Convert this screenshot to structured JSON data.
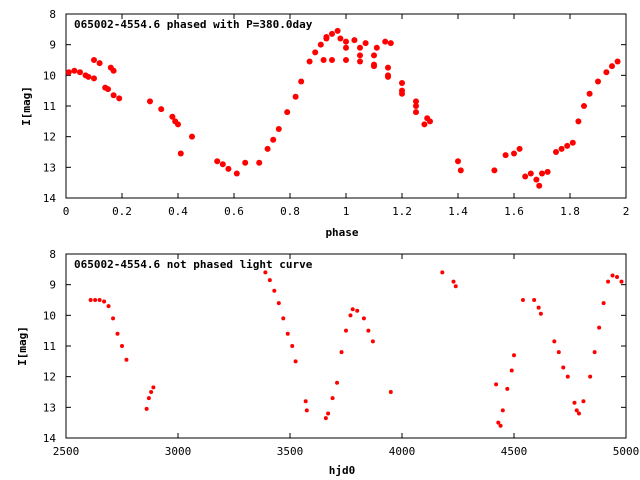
{
  "colors": {
    "series": "#ff0000",
    "axes": "#000000",
    "background": "#ffffff"
  },
  "chart_data": [
    {
      "type": "scatter",
      "title": "065002-4554.6 phased with P=380.0day",
      "xlabel": "phase",
      "ylabel": "I[mag]",
      "xlim": [
        0,
        2
      ],
      "ylim": [
        14,
        8
      ],
      "y_reversed": true,
      "grid": false,
      "x_ticks": [
        "0",
        "0.2",
        "0.4",
        "0.6",
        "0.8",
        "1",
        "1.2",
        "1.4",
        "1.6",
        "1.8",
        "2"
      ],
      "y_ticks": [
        "8",
        "9",
        "10",
        "11",
        "12",
        "13",
        "14"
      ],
      "series": [
        {
          "marker": "filled-circle",
          "points": [
            [
              0.01,
              9.9
            ],
            [
              0.03,
              9.85
            ],
            [
              0.05,
              9.9
            ],
            [
              0.07,
              10.0
            ],
            [
              0.08,
              10.05
            ],
            [
              0.1,
              10.1
            ],
            [
              0.1,
              9.5
            ],
            [
              0.12,
              9.6
            ],
            [
              0.14,
              10.4
            ],
            [
              0.15,
              10.45
            ],
            [
              0.16,
              9.75
            ],
            [
              0.17,
              9.85
            ],
            [
              0.17,
              10.65
            ],
            [
              0.19,
              10.75
            ],
            [
              0.3,
              10.85
            ],
            [
              0.34,
              11.1
            ],
            [
              0.38,
              11.35
            ],
            [
              0.39,
              11.5
            ],
            [
              0.4,
              11.6
            ],
            [
              0.41,
              12.55
            ],
            [
              0.45,
              12.0
            ],
            [
              0.54,
              12.8
            ],
            [
              0.56,
              12.9
            ],
            [
              0.58,
              13.05
            ],
            [
              0.61,
              13.2
            ],
            [
              0.64,
              12.85
            ],
            [
              0.69,
              12.85
            ],
            [
              0.72,
              12.4
            ],
            [
              0.74,
              12.1
            ],
            [
              0.76,
              11.75
            ],
            [
              0.79,
              11.2
            ],
            [
              0.82,
              10.7
            ],
            [
              0.84,
              10.2
            ],
            [
              0.87,
              9.55
            ],
            [
              0.89,
              9.25
            ],
            [
              0.91,
              9.0
            ],
            [
              0.93,
              8.8
            ],
            [
              0.95,
              8.65
            ],
            [
              0.97,
              8.55
            ],
            [
              0.92,
              9.5
            ],
            [
              0.95,
              9.5
            ],
            [
              1.0,
              9.5
            ],
            [
              1.05,
              9.55
            ],
            [
              1.1,
              9.7
            ],
            [
              1.15,
              10.0
            ],
            [
              1.2,
              10.5
            ],
            [
              1.25,
              11.0
            ],
            [
              1.3,
              11.5
            ],
            [
              0.93,
              8.75
            ],
            [
              0.98,
              8.8
            ],
            [
              1.03,
              8.85
            ],
            [
              1.07,
              8.95
            ],
            [
              1.11,
              9.1
            ],
            [
              1.0,
              8.9
            ],
            [
              1.05,
              9.1
            ],
            [
              1.1,
              9.35
            ],
            [
              1.15,
              9.75
            ],
            [
              1.2,
              10.25
            ],
            [
              1.25,
              10.85
            ],
            [
              1.29,
              11.4
            ],
            [
              1.0,
              9.1
            ],
            [
              1.05,
              9.35
            ],
            [
              1.1,
              9.65
            ],
            [
              1.15,
              10.05
            ],
            [
              1.2,
              10.6
            ],
            [
              1.25,
              11.2
            ],
            [
              1.28,
              11.6
            ],
            [
              1.14,
              8.9
            ],
            [
              1.16,
              8.95
            ],
            [
              1.4,
              12.8
            ],
            [
              1.41,
              13.1
            ],
            [
              1.53,
              13.1
            ],
            [
              1.57,
              12.6
            ],
            [
              1.6,
              12.55
            ],
            [
              1.62,
              12.4
            ],
            [
              1.64,
              13.3
            ],
            [
              1.66,
              13.2
            ],
            [
              1.68,
              13.4
            ],
            [
              1.69,
              13.6
            ],
            [
              1.7,
              13.2
            ],
            [
              1.72,
              13.15
            ],
            [
              1.75,
              12.5
            ],
            [
              1.77,
              12.4
            ],
            [
              1.79,
              12.3
            ],
            [
              1.81,
              12.2
            ],
            [
              1.83,
              11.5
            ],
            [
              1.85,
              11.0
            ],
            [
              1.87,
              10.6
            ],
            [
              1.9,
              10.2
            ],
            [
              1.93,
              9.9
            ],
            [
              1.95,
              9.7
            ],
            [
              1.97,
              9.55
            ]
          ]
        }
      ]
    },
    {
      "type": "scatter",
      "title": "065002-4554.6 not phased light curve",
      "xlabel": "hjd0",
      "ylabel": "I[mag]",
      "xlim": [
        2500,
        5000
      ],
      "ylim": [
        14,
        8
      ],
      "y_reversed": true,
      "grid": false,
      "x_ticks": [
        "2500",
        "3000",
        "3500",
        "4000",
        "4500",
        "5000"
      ],
      "y_ticks": [
        "8",
        "9",
        "10",
        "11",
        "12",
        "13",
        "14"
      ],
      "series": [
        {
          "marker": "small-circle",
          "points": [
            [
              2610,
              9.5
            ],
            [
              2630,
              9.5
            ],
            [
              2650,
              9.5
            ],
            [
              2670,
              9.55
            ],
            [
              2690,
              9.7
            ],
            [
              2710,
              10.1
            ],
            [
              2730,
              10.6
            ],
            [
              2750,
              11.0
            ],
            [
              2770,
              11.45
            ],
            [
              2860,
              13.05
            ],
            [
              2870,
              12.7
            ],
            [
              2880,
              12.5
            ],
            [
              2890,
              12.35
            ],
            [
              3390,
              8.6
            ],
            [
              3410,
              8.85
            ],
            [
              3430,
              9.2
            ],
            [
              3450,
              9.6
            ],
            [
              3470,
              10.1
            ],
            [
              3490,
              10.6
            ],
            [
              3510,
              11.0
            ],
            [
              3525,
              11.5
            ],
            [
              3570,
              12.8
            ],
            [
              3575,
              13.1
            ],
            [
              3660,
              13.35
            ],
            [
              3670,
              13.2
            ],
            [
              3690,
              12.7
            ],
            [
              3710,
              12.2
            ],
            [
              3730,
              11.2
            ],
            [
              3750,
              10.5
            ],
            [
              3770,
              10.0
            ],
            [
              3780,
              9.8
            ],
            [
              3800,
              9.85
            ],
            [
              3830,
              10.1
            ],
            [
              3850,
              10.5
            ],
            [
              3870,
              10.85
            ],
            [
              3950,
              12.5
            ],
            [
              4180,
              8.6
            ],
            [
              4230,
              8.9
            ],
            [
              4240,
              9.05
            ],
            [
              4420,
              12.25
            ],
            [
              4430,
              13.5
            ],
            [
              4440,
              13.6
            ],
            [
              4450,
              13.1
            ],
            [
              4470,
              12.4
            ],
            [
              4490,
              11.8
            ],
            [
              4500,
              11.3
            ],
            [
              4540,
              9.5
            ],
            [
              4590,
              9.5
            ],
            [
              4610,
              9.75
            ],
            [
              4620,
              9.95
            ],
            [
              4680,
              10.85
            ],
            [
              4700,
              11.2
            ],
            [
              4720,
              11.7
            ],
            [
              4740,
              12.0
            ],
            [
              4770,
              12.85
            ],
            [
              4780,
              13.1
            ],
            [
              4790,
              13.2
            ],
            [
              4810,
              12.8
            ],
            [
              4840,
              12.0
            ],
            [
              4860,
              11.2
            ],
            [
              4880,
              10.4
            ],
            [
              4900,
              9.6
            ],
            [
              4920,
              8.9
            ],
            [
              4940,
              8.7
            ],
            [
              4960,
              8.75
            ],
            [
              4980,
              8.9
            ]
          ]
        }
      ]
    }
  ]
}
